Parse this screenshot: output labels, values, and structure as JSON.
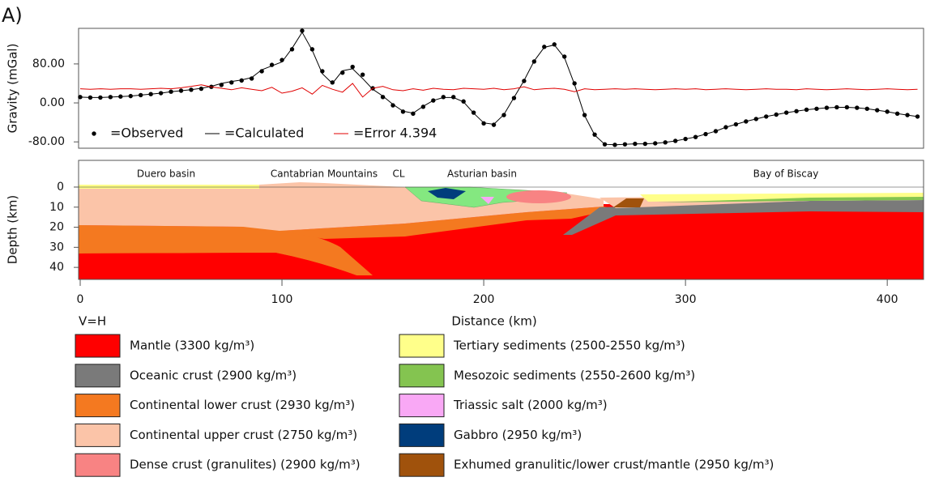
{
  "panel_label": "A)",
  "chart_data": [
    {
      "type": "line",
      "ylabel": "Gravity (mGal)",
      "xlim": [
        -0.8,
        418
      ],
      "ylim": [
        -93,
        153
      ],
      "yticks": [
        {
          "value": 80,
          "label": "80.00"
        },
        {
          "value": 0,
          "label": "0.00"
        },
        {
          "value": -80,
          "label": "-80.00"
        }
      ],
      "x": [
        0,
        5,
        10,
        15,
        20,
        25,
        30,
        35,
        40,
        45,
        50,
        55,
        60,
        65,
        70,
        75,
        80,
        85,
        90,
        95,
        100,
        105,
        110,
        115,
        120,
        125,
        130,
        135,
        140,
        145,
        150,
        155,
        160,
        165,
        170,
        175,
        180,
        185,
        190,
        195,
        200,
        205,
        210,
        215,
        220,
        225,
        230,
        235,
        240,
        245,
        250,
        255,
        260,
        265,
        270,
        275,
        280,
        285,
        290,
        295,
        300,
        305,
        310,
        315,
        320,
        325,
        330,
        335,
        340,
        345,
        350,
        355,
        360,
        365,
        370,
        375,
        380,
        385,
        390,
        395,
        400,
        405,
        410,
        415
      ],
      "series": [
        {
          "name": "=Observed",
          "color": "#000000",
          "marker": "dot",
          "values": [
            12,
            11,
            11,
            12,
            13,
            14,
            16,
            18,
            20,
            23,
            25,
            27,
            29,
            33,
            37,
            42,
            46,
            50,
            65,
            78,
            88,
            110,
            148,
            110,
            65,
            42,
            62,
            74,
            58,
            30,
            12,
            -5,
            -18,
            -22,
            -8,
            5,
            12,
            12,
            3,
            -20,
            -42,
            -45,
            -25,
            10,
            45,
            85,
            115,
            120,
            95,
            40,
            -25,
            -65,
            -85,
            -86,
            -85,
            -84,
            -84,
            -83,
            -81,
            -78,
            -74,
            -70,
            -64,
            -58,
            -50,
            -44,
            -38,
            -33,
            -28,
            -24,
            -20,
            -17,
            -14,
            -12,
            -10,
            -9,
            -9,
            -10,
            -12,
            -15,
            -18,
            -22,
            -25,
            -28
          ]
        },
        {
          "name": "=Calculated",
          "color": "#000000",
          "marker": "line",
          "values": [
            12,
            11,
            11,
            12,
            13,
            14,
            16,
            18,
            20,
            23,
            25,
            27,
            30,
            34,
            40,
            44,
            47,
            52,
            68,
            76,
            84,
            112,
            145,
            108,
            60,
            40,
            66,
            70,
            50,
            28,
            14,
            -3,
            -17,
            -21,
            -7,
            5,
            11,
            11,
            2,
            -21,
            -41,
            -44,
            -24,
            11,
            46,
            86,
            114,
            119,
            93,
            38,
            -26,
            -66,
            -85,
            -86,
            -85,
            -84,
            -84,
            -83,
            -81,
            -78,
            -74,
            -70,
            -64,
            -58,
            -50,
            -44,
            -38,
            -33,
            -28,
            -24,
            -20,
            -17,
            -14,
            -12,
            -10,
            -9,
            -9,
            -10,
            -12,
            -15,
            -18,
            -22,
            -25,
            -28
          ]
        },
        {
          "name": "=Error 4.394",
          "color": "#e00000",
          "marker": "line",
          "values": [
            29,
            28,
            29,
            28,
            29,
            29,
            28,
            29,
            30,
            29,
            31,
            34,
            37,
            33,
            30,
            27,
            31,
            28,
            25,
            32,
            20,
            24,
            31,
            18,
            36,
            28,
            22,
            40,
            12,
            30,
            34,
            27,
            25,
            29,
            26,
            30,
            28,
            27,
            30,
            29,
            28,
            30,
            27,
            29,
            33,
            27,
            29,
            30,
            28,
            23,
            29,
            27,
            28,
            29,
            28,
            29,
            28,
            27,
            28,
            29,
            28,
            29,
            27,
            28,
            29,
            28,
            27,
            28,
            29,
            28,
            28,
            27,
            29,
            28,
            27,
            28,
            29,
            28,
            27,
            28,
            29,
            28,
            27,
            28
          ]
        }
      ]
    },
    {
      "type": "section",
      "ylabel": "Depth (km)",
      "xlabel": "Distance (km)",
      "note": "V=H",
      "xlim": [
        -0.8,
        418
      ],
      "xticks": [
        0,
        100,
        200,
        300,
        400
      ],
      "ylim": [
        46,
        -13.3
      ],
      "yticks": [
        0,
        10,
        20,
        30,
        40
      ],
      "annotations": [
        "Duero basin",
        "Cantabrian Mountains",
        "CL",
        "Asturian basin",
        "Bay of Biscay"
      ]
    }
  ],
  "legend": [
    {
      "label": "Mantle (3300 kg/m³)",
      "color": "#ff0000"
    },
    {
      "label": "Oceanic crust (2900 kg/m³)",
      "color": "#7a7a7a"
    },
    {
      "label": "Continental lower crust (2930 kg/m³)",
      "color": "#f47920"
    },
    {
      "label": "Continental upper crust (2750 kg/m³)",
      "color": "#fbc4a8"
    },
    {
      "label": "Dense crust (granulites) (2900 kg/m³)",
      "color": "#f88383"
    },
    {
      "label": "Tertiary sediments (2500-2550 kg/m³)",
      "color": "#ffff8a"
    },
    {
      "label": "Mesozoic sediments (2550-2600 kg/m³)",
      "color": "#84c450"
    },
    {
      "label": "Triassic salt (2000 kg/m³)",
      "color": "#f9a8f5"
    },
    {
      "label": "Gabbro (2950 kg/m³)",
      "color": "#003d7c"
    },
    {
      "label": "Exhumed granulitic/lower crust/mantle (2950 kg/m³)",
      "color": "#a0520c"
    }
  ]
}
